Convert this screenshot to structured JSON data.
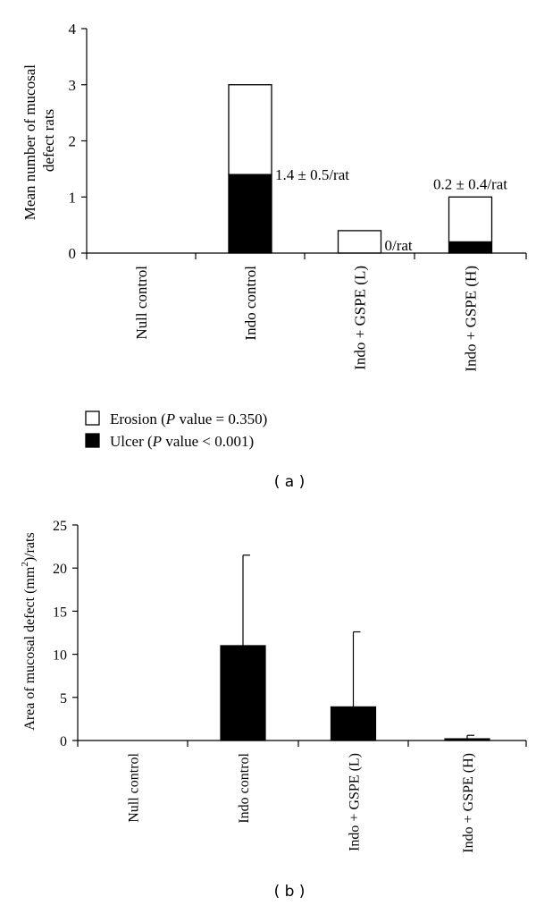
{
  "chart_data": [
    {
      "type": "bar",
      "panel_label": "( a )",
      "ylabel": "Mean number of mucosal defect rats",
      "ylim": [
        0,
        4
      ],
      "yticks": [
        "0",
        "1",
        "2",
        "3",
        "4"
      ],
      "categories": [
        "Null control",
        "Indo control",
        "Indo + GSPE (L)",
        "Indo + GSPE (H)"
      ],
      "stacked": true,
      "series": [
        {
          "name": "Ulcer",
          "color": "#000000",
          "values": [
            0,
            1.4,
            0,
            0.2
          ]
        },
        {
          "name": "Erosion",
          "color": "#ffffff",
          "values": [
            0,
            1.6,
            0.4,
            0.8
          ]
        }
      ],
      "annotations": [
        "",
        "1.4 ± 0.5/rat",
        "0/rat",
        "0.2 ± 0.4/rat"
      ],
      "legend": [
        {
          "label": "Erosion",
          "p_text": "P",
          "suffix": " value = 0.350)",
          "prefix": "Erosion (",
          "color": "#ffffff"
        },
        {
          "label": "Ulcer",
          "p_text": "P",
          "suffix": " value < 0.001)",
          "prefix": "Ulcer (",
          "color": "#000000"
        }
      ],
      "legend_placement": "bottom-left",
      "grid": false
    },
    {
      "type": "bar",
      "panel_label": "( b )",
      "ylabel_main": "Area of mucosal defect (mm",
      "ylabel_sup": "2",
      "ylabel_tail": ")/rats",
      "ylim": [
        0,
        25
      ],
      "yticks": [
        "0",
        "5",
        "10",
        "15",
        "20",
        "25"
      ],
      "categories": [
        "Null control",
        "Indo control",
        "Indo + GSPE (L)",
        "Indo + GSPE (H)"
      ],
      "series": [
        {
          "values": [
            0,
            11.0,
            3.9,
            0.2
          ],
          "errors": [
            0,
            10.5,
            8.7,
            0.4
          ],
          "color": "#000000"
        }
      ],
      "grid": false
    }
  ]
}
